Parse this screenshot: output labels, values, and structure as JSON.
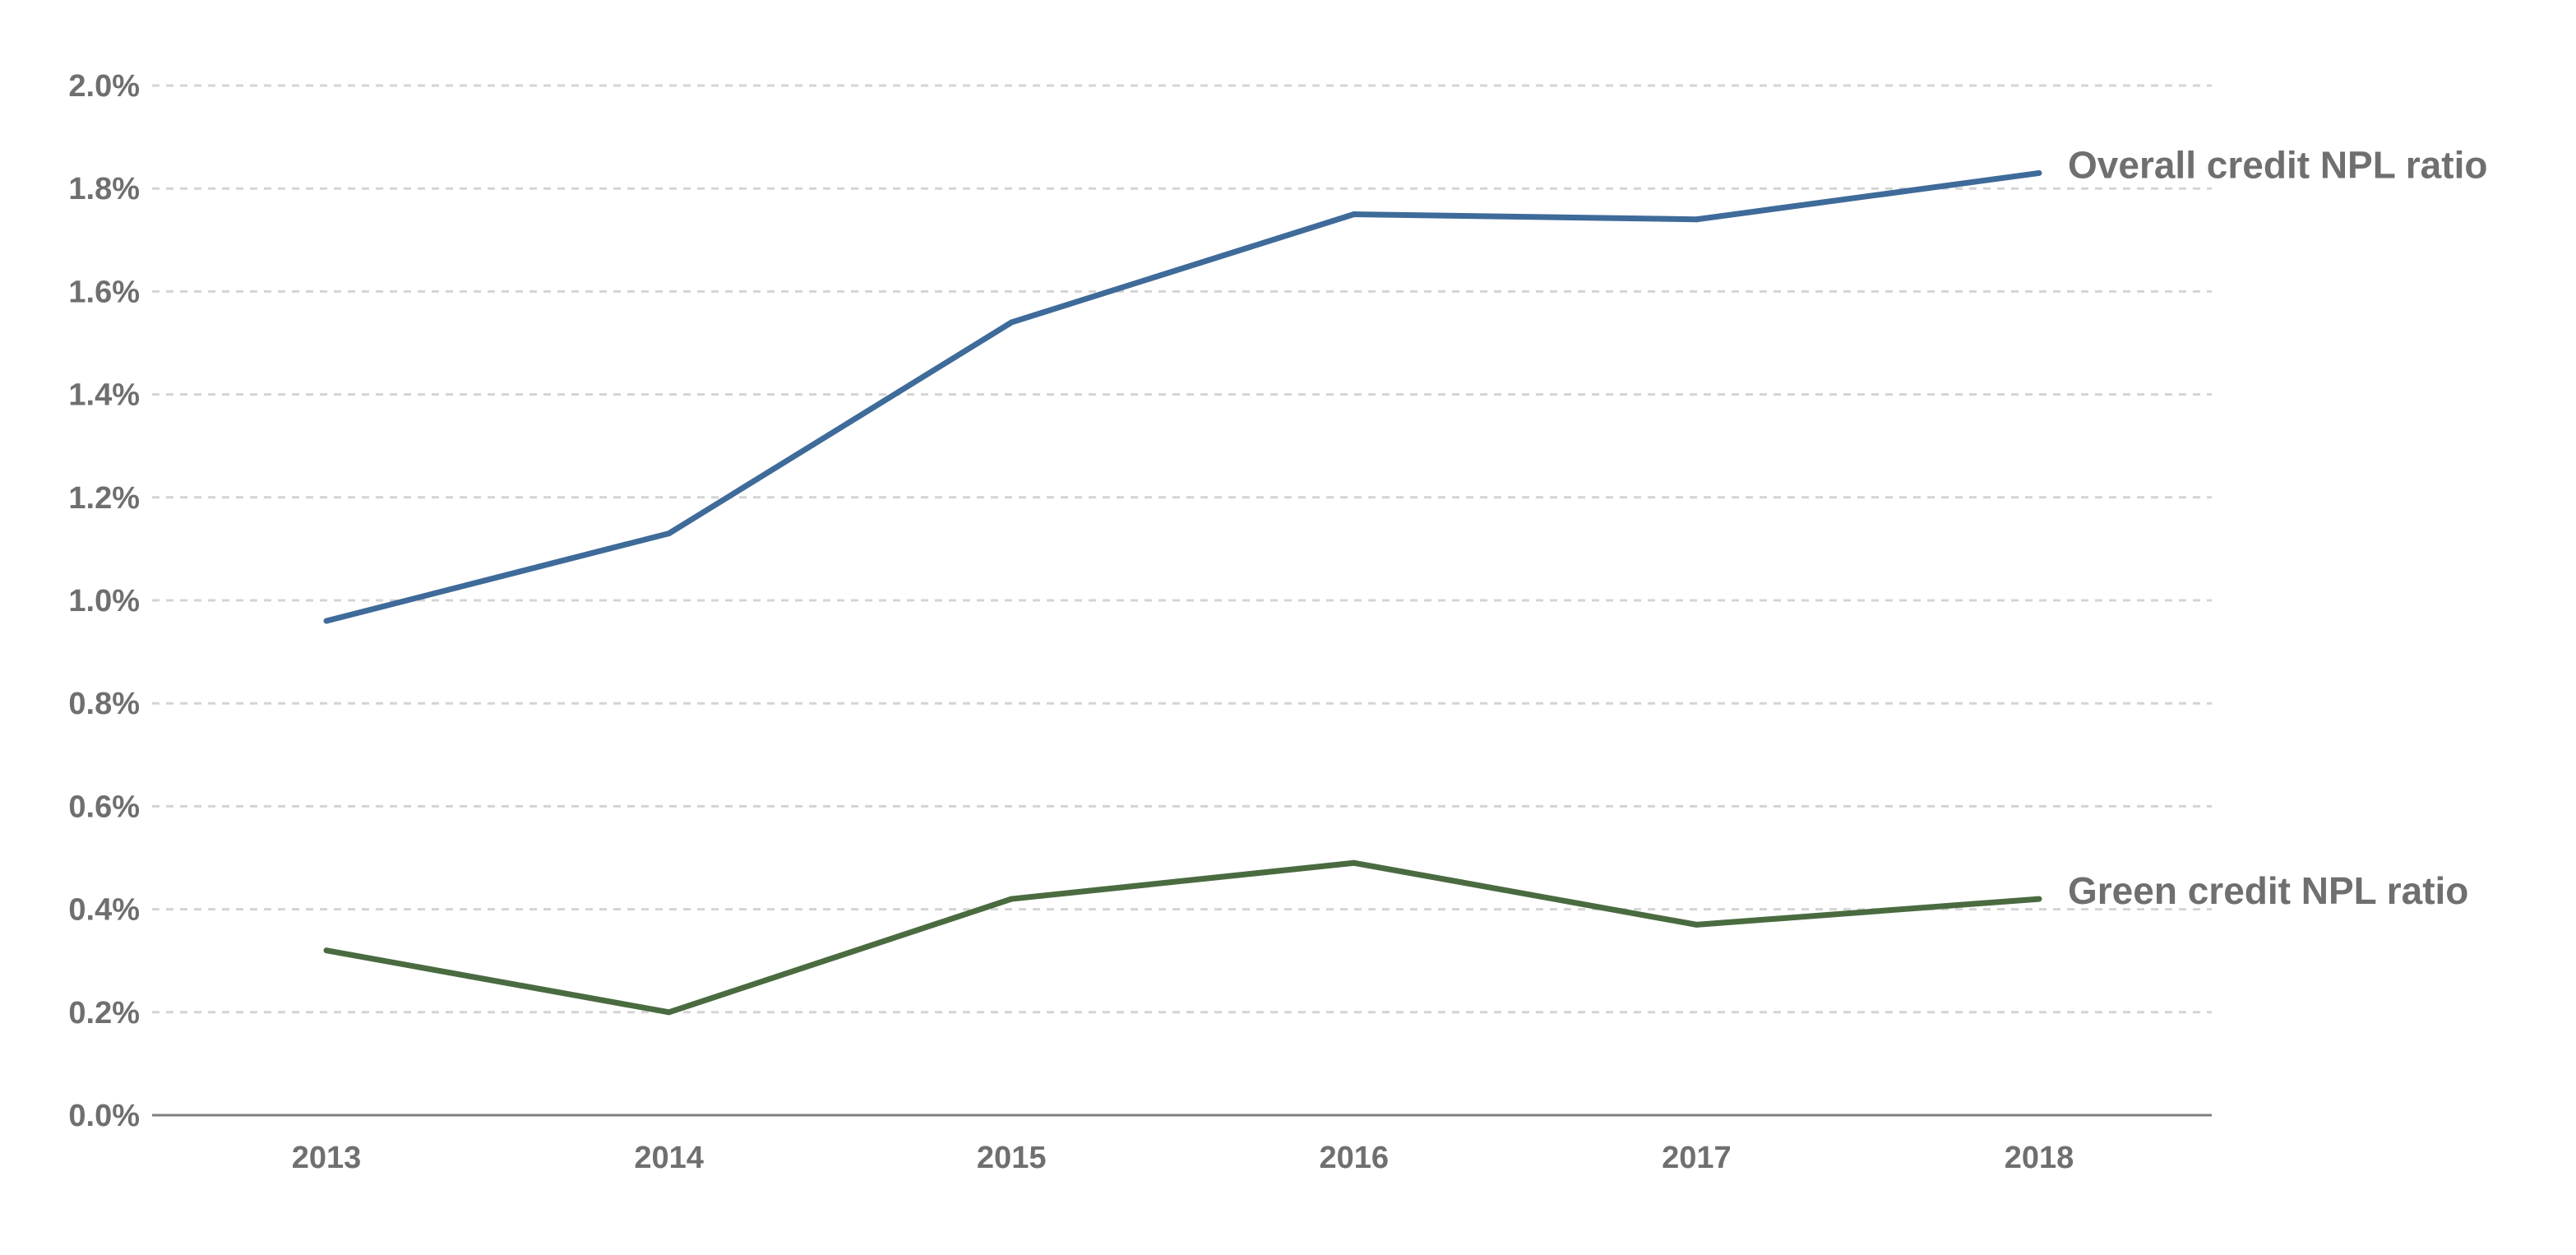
{
  "chart_data": {
    "type": "line",
    "title": "",
    "xlabel": "",
    "ylabel": "",
    "categories": [
      "2013",
      "2014",
      "2015",
      "2016",
      "2017",
      "2018"
    ],
    "ylim": [
      0,
      2.0
    ],
    "y_ticks": [
      0,
      0.2,
      0.4,
      0.6,
      0.8,
      1.0,
      1.2,
      1.4,
      1.6,
      1.8,
      2.0
    ],
    "y_tick_labels": [
      "0.0%",
      "0.2%",
      "0.4%",
      "0.6%",
      "0.8%",
      "1.0%",
      "1.2%",
      "1.4%",
      "1.6%",
      "1.8%",
      "2.0%"
    ],
    "y_unit": "%",
    "grid": true,
    "legend": "direct labels at right end of each line",
    "series": [
      {
        "name": "Overall credit NPL ratio",
        "values": [
          0.96,
          1.13,
          1.54,
          1.75,
          1.74,
          1.83
        ],
        "color": "#3e6b99"
      },
      {
        "name": "Green credit NPL ratio",
        "values": [
          0.32,
          0.2,
          0.42,
          0.49,
          0.37,
          0.42
        ],
        "color": "#4a6b40"
      }
    ]
  }
}
